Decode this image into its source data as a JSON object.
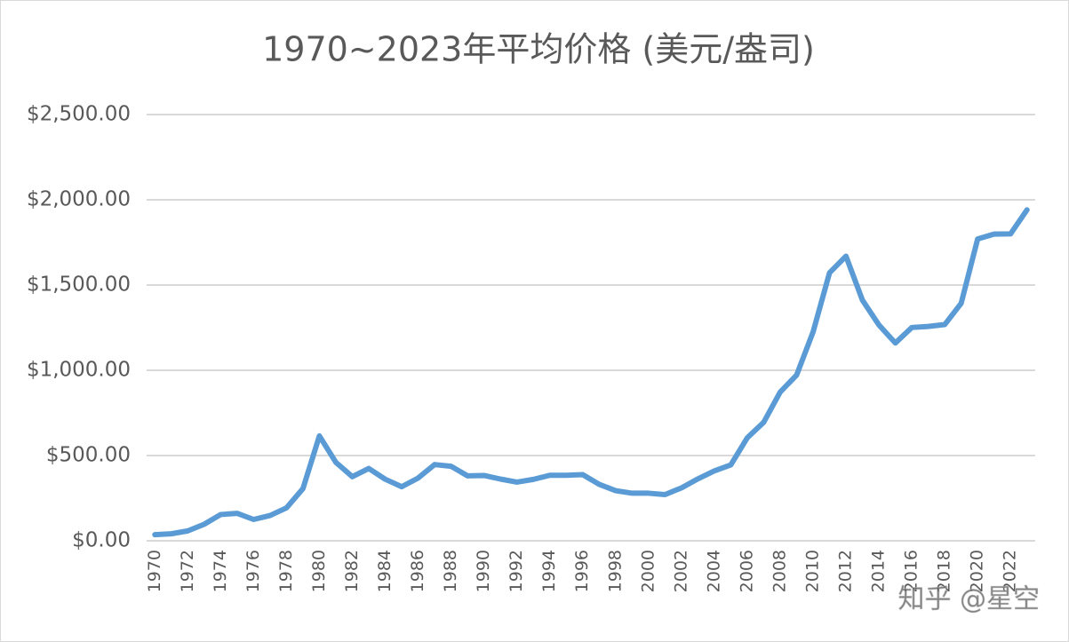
{
  "chart_data": {
    "type": "line",
    "title": "1970~2023年平均价格 (美元/盎司)",
    "categories": [
      "1970",
      null,
      "1972",
      null,
      "1974",
      null,
      "1976",
      null,
      "1978",
      null,
      "1980",
      null,
      "1982",
      null,
      "1984",
      null,
      "1986",
      null,
      "1988",
      null,
      "1990",
      null,
      "1992",
      null,
      "1994",
      null,
      "1996",
      null,
      "1998",
      null,
      "2000",
      null,
      "2002",
      null,
      "2004",
      null,
      "2006",
      null,
      "2008",
      null,
      "2010",
      null,
      "2012",
      null,
      "2014",
      null,
      "2016",
      null,
      "2018",
      null,
      "2020",
      null,
      "2022",
      null
    ],
    "series": [
      {
        "color": "#5b9bd5",
        "values": [
          36,
          41,
          58,
          97,
          154,
          161,
          125,
          148,
          193,
          306,
          615,
          460,
          376,
          424,
          361,
          317,
          368,
          447,
          437,
          381,
          383,
          362,
          344,
          360,
          384,
          384,
          388,
          331,
          294,
          279,
          279,
          271,
          310,
          363,
          410,
          445,
          604,
          695,
          872,
          972,
          1225,
          1572,
          1669,
          1411,
          1266,
          1160,
          1251,
          1257,
          1268,
          1393,
          1770,
          1799,
          1800,
          1941
        ]
      }
    ],
    "ylim": [
      0,
      2500
    ],
    "yticks": [
      {
        "value": 0,
        "label": "$0.00"
      },
      {
        "value": 500,
        "label": "$500.00"
      },
      {
        "value": 1000,
        "label": "$1,000.00"
      },
      {
        "value": 1500,
        "label": "$1,500.00"
      },
      {
        "value": 2000,
        "label": "$2,000.00"
      },
      {
        "value": 2500,
        "label": "$2,500.00"
      }
    ],
    "grid": true,
    "watermark": "知乎 @星空"
  }
}
